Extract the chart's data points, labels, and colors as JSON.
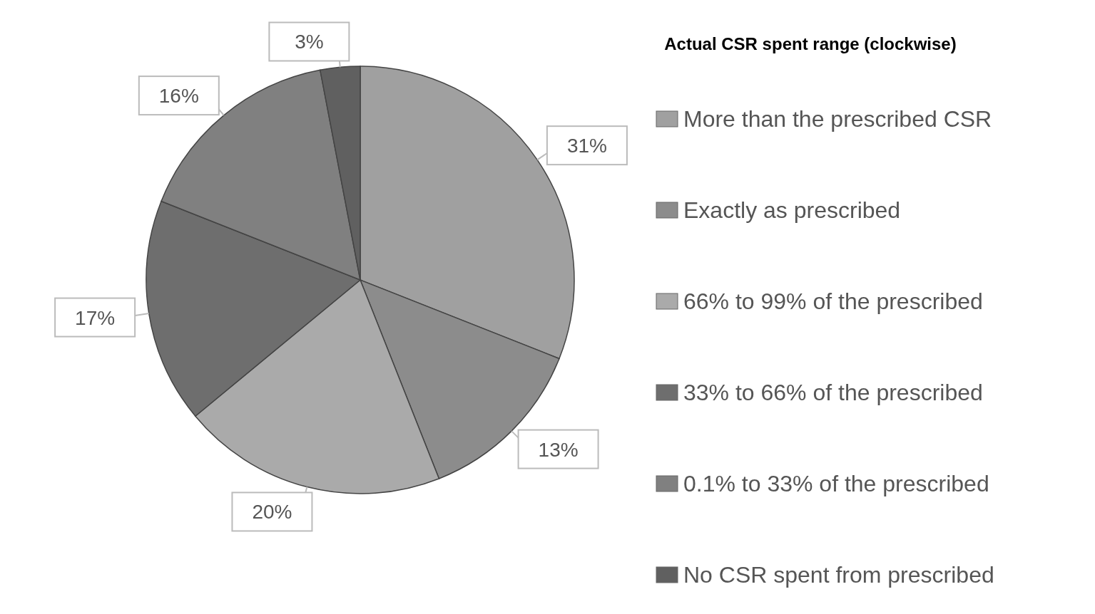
{
  "chart_data": {
    "type": "pie",
    "legend_title": "Actual CSR spent range (clockwise)",
    "categories": [
      "More than the prescribed CSR",
      "Exactly as prescribed",
      "66% to 99% of the prescribed",
      "33% to 66% of the prescribed",
      "0.1% to 33% of the prescribed",
      "No CSR spent from prescribed"
    ],
    "values": [
      31,
      13,
      20,
      17,
      16,
      3
    ],
    "colors": [
      "#a0a0a0",
      "#8c8c8c",
      "#aaaaaa",
      "#6e6e6e",
      "#808080",
      "#606060"
    ],
    "value_labels": [
      "31%",
      "13%",
      "20%",
      "17%",
      "16%",
      "3%"
    ],
    "legend": "right"
  }
}
